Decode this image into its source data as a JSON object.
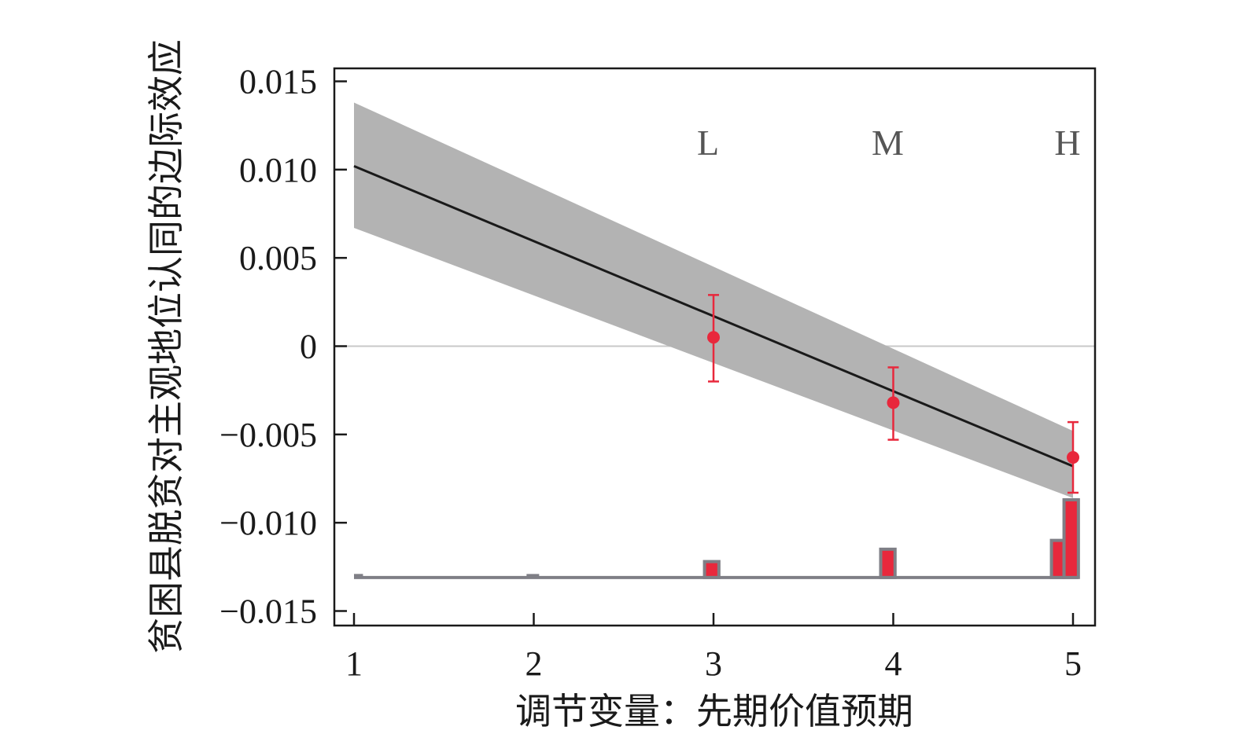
{
  "chart_data": {
    "type": "line",
    "xlabel": "调节变量：先期价值预期",
    "ylabel": "贫困县脱贫对主观地位认同的边际效应",
    "xlim": [
      0.95,
      5.1
    ],
    "ylim": [
      -0.0165,
      0.0165
    ],
    "x_ticks": [
      1,
      2,
      3,
      4,
      5
    ],
    "x_tick_labels": [
      "1",
      "2",
      "3",
      "4",
      "5"
    ],
    "y_ticks": [
      0.015,
      0.01,
      0.005,
      0,
      -0.005,
      -0.01,
      -0.015
    ],
    "y_tick_labels": [
      "0.015",
      "0.010",
      "0.005",
      "0",
      "−0.005",
      "−0.010",
      "−0.015"
    ],
    "zero_line": true,
    "marginal_effect_line": {
      "x": [
        1,
        5
      ],
      "y": [
        0.0102,
        -0.0068
      ],
      "color": "#1a1a1a"
    },
    "confidence_band": {
      "x": [
        1,
        5
      ],
      "upper": [
        0.0138,
        -0.0048
      ],
      "lower": [
        0.0067,
        -0.0086
      ],
      "color": "#b3b3b3"
    },
    "binned_estimates": [
      {
        "label": "L",
        "x": 3,
        "y": 0.0005,
        "ci_low": -0.002,
        "ci_high": 0.0029
      },
      {
        "label": "M",
        "x": 4,
        "y": -0.0032,
        "ci_low": -0.0053,
        "ci_high": -0.0012
      },
      {
        "label": "H",
        "x": 5,
        "y": -0.0063,
        "ci_low": -0.0083,
        "ci_high": -0.0043
      }
    ],
    "binned_estimate_color": "#e8283c",
    "histogram": {
      "baseline": -0.0131,
      "bar_color": "#e8283c",
      "edge_color": "#7f7f86",
      "bars": [
        {
          "x0": 2.95,
          "x1": 3.03,
          "top": -0.0122
        },
        {
          "x0": 3.93,
          "x1": 4.01,
          "top": -0.0115
        },
        {
          "x0": 4.88,
          "x1": 4.95,
          "top": -0.011
        },
        {
          "x0": 4.95,
          "x1": 5.03,
          "top": -0.0087
        }
      ],
      "stubs": [
        {
          "x0": 1.0,
          "x1": 1.05
        },
        {
          "x0": 1.96,
          "x1": 2.03
        }
      ]
    }
  }
}
